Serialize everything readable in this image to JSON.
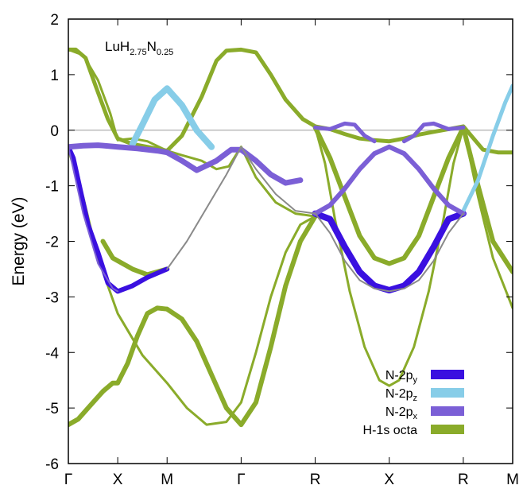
{
  "chart_data": {
    "type": "line",
    "title": "",
    "inset_label": {
      "base": "LuH",
      "sub1": "2.75",
      "mid": "N",
      "sub2": "0.25"
    },
    "ylabel": "Energy (eV)",
    "xlabel": "",
    "ylim": [
      -6,
      2
    ],
    "y_ticks": [
      2,
      1,
      0,
      -1,
      -2,
      -3,
      -4,
      -5,
      -6
    ],
    "x_ticks": [
      "Γ",
      "X",
      "M",
      "Γ",
      "R",
      "X",
      "R",
      "M"
    ],
    "x_tick_positions": [
      0,
      1,
      2,
      3.5,
      5,
      6.5,
      8,
      9
    ],
    "xlim": [
      0,
      9
    ],
    "fermi_level": 0,
    "legend_position": "bottom-right",
    "legend": [
      {
        "base": "N-2p",
        "sub": "y",
        "color": "#3a10e0"
      },
      {
        "base": "N-2p",
        "sub": "z",
        "color": "#87cde8"
      },
      {
        "base": "N-2p",
        "sub": "x",
        "color": "#7b5fd6"
      },
      {
        "base": "H-1s octa",
        "sub": "",
        "color": "#8aab2a"
      }
    ],
    "series": [
      {
        "character": "H-1s octa",
        "color": "#8aab2a",
        "width": 5,
        "x": [
          0,
          0.15,
          0.35,
          0.55,
          0.8,
          1.0,
          1.3,
          1.6,
          2.0,
          2.3,
          2.7,
          3.0,
          3.2,
          3.5,
          3.8,
          4.1,
          4.4,
          4.75,
          5.0,
          5.3,
          5.6,
          5.9,
          6.2,
          6.5,
          6.8,
          7.1,
          7.4,
          7.7,
          8.0,
          8.4,
          8.7,
          9.0
        ],
        "y": [
          1.45,
          1.45,
          1.3,
          0.8,
          0.2,
          -0.15,
          -0.25,
          -0.3,
          -0.37,
          -0.1,
          0.6,
          1.25,
          1.43,
          1.45,
          1.4,
          1.0,
          0.55,
          0.2,
          0.07,
          0.02,
          -0.07,
          -0.15,
          -0.18,
          -0.2,
          -0.15,
          -0.08,
          -0.03,
          0.02,
          0.07,
          -0.35,
          -0.4,
          -0.4
        ]
      },
      {
        "character": "H-1s octa",
        "color": "#8aab2a",
        "width": 3,
        "x": [
          0,
          0.3,
          0.6,
          0.85,
          1.0,
          1.3,
          1.6,
          2.0,
          2.3,
          2.7,
          3.0,
          3.25,
          3.5,
          3.8,
          4.2,
          4.6,
          5.0
        ],
        "y": [
          1.45,
          1.35,
          0.9,
          0.3,
          -0.18,
          -0.15,
          -0.2,
          -0.37,
          -0.45,
          -0.55,
          -0.7,
          -0.65,
          -0.3,
          -0.85,
          -1.3,
          -1.5,
          -1.55
        ]
      },
      {
        "character": "H-1s octa",
        "color": "#8aab2a",
        "width": 3,
        "x": [
          0,
          0.3,
          0.6,
          1.0,
          1.5,
          2.0,
          2.4,
          2.8,
          3.2,
          3.5,
          3.8,
          4.1,
          4.4,
          4.7,
          5.0
        ],
        "y": [
          -0.35,
          -1.2,
          -2.3,
          -3.3,
          -4.05,
          -4.55,
          -5.0,
          -5.3,
          -5.25,
          -4.9,
          -4.0,
          -3.0,
          -2.2,
          -1.7,
          -1.55
        ]
      },
      {
        "character": "H-1s octa",
        "color": "#8aab2a",
        "width": 6,
        "x": [
          0,
          0.2,
          0.4,
          0.7,
          0.9,
          1.0,
          1.2,
          1.4,
          1.6,
          1.8,
          2.0
        ],
        "y": [
          -5.3,
          -5.2,
          -5.0,
          -4.7,
          -4.55,
          -4.55,
          -4.2,
          -3.7,
          -3.3,
          -3.2,
          -3.22
        ]
      },
      {
        "character": "H-1s octa",
        "color": "#8aab2a",
        "width": 6,
        "x": [
          2.0,
          2.3,
          2.6,
          2.9,
          3.2,
          3.5,
          3.8,
          4.1,
          4.4,
          4.7,
          5.0
        ],
        "y": [
          -3.22,
          -3.4,
          -3.8,
          -4.4,
          -5.0,
          -5.3,
          -4.9,
          -3.9,
          -2.8,
          -2.0,
          -1.55
        ]
      },
      {
        "character": "H-1s octa",
        "color": "#8aab2a",
        "width": 6,
        "x": [
          0.7,
          0.9,
          1.0,
          1.3,
          1.6,
          2.0
        ],
        "y": [
          -2.0,
          -2.3,
          -2.35,
          -2.5,
          -2.6,
          -2.5
        ]
      },
      {
        "character": "H-1s octa",
        "color": "#8aab2a",
        "width": 3,
        "x": [
          5.0,
          5.2,
          5.4,
          5.7,
          6.0,
          6.3,
          6.5,
          6.7,
          7.0,
          7.3,
          7.6,
          7.8,
          8.0
        ],
        "y": [
          0.05,
          -0.6,
          -1.6,
          -2.9,
          -3.9,
          -4.5,
          -4.6,
          -4.5,
          -3.9,
          -2.9,
          -1.6,
          -0.6,
          0.05
        ]
      },
      {
        "character": "H-1s octa",
        "color": "#8aab2a",
        "width": 6,
        "x": [
          5.0,
          5.3,
          5.6,
          5.9,
          6.2,
          6.5,
          6.8,
          7.1,
          7.4,
          7.7,
          8.0,
          8.3,
          8.6,
          9.0
        ],
        "y": [
          0.05,
          -0.5,
          -1.2,
          -1.9,
          -2.3,
          -2.4,
          -2.3,
          -1.9,
          -1.2,
          -0.5,
          0.05,
          -1.0,
          -2.0,
          -2.55
        ]
      },
      {
        "character": "H-1s octa",
        "color": "#8aab2a",
        "width": 3,
        "x": [
          8.0,
          8.3,
          8.6,
          9.0
        ],
        "y": [
          0.05,
          -1.2,
          -2.3,
          -3.2
        ]
      },
      {
        "character": "N-2py",
        "color": "#3a10e0",
        "width": 6,
        "x": [
          0,
          0.1,
          0.25,
          0.4,
          0.6,
          0.8,
          1.0,
          1.3,
          1.6,
          2.0
        ],
        "y": [
          -0.3,
          -0.5,
          -1.1,
          -1.7,
          -2.2,
          -2.75,
          -2.9,
          -2.8,
          -2.65,
          -2.5
        ]
      },
      {
        "character": "N-2py",
        "color": "#3a10e0",
        "width": 8,
        "x": [
          5.0,
          5.3,
          5.6,
          5.9,
          6.2,
          6.5,
          6.8,
          7.1,
          7.4,
          7.7,
          8.0
        ],
        "y": [
          -1.5,
          -1.6,
          -2.1,
          -2.55,
          -2.8,
          -2.88,
          -2.8,
          -2.55,
          -2.1,
          -1.6,
          -1.5
        ]
      },
      {
        "character": "N-2pz",
        "color": "#87cde8",
        "width": 8,
        "x": [
          1.3,
          1.5,
          1.75,
          2.0,
          2.3,
          2.6,
          2.9
        ],
        "y": [
          -0.25,
          0.1,
          0.55,
          0.75,
          0.45,
          0.0,
          -0.3
        ]
      },
      {
        "character": "N-2pz",
        "color": "#87cde8",
        "width": 5,
        "x": [
          8.0,
          8.3,
          8.6,
          8.85,
          9.0
        ],
        "y": [
          -1.45,
          -0.9,
          -0.1,
          0.5,
          0.8
        ]
      },
      {
        "character": "N-2px",
        "color": "#7b5fd6",
        "width": 7,
        "x": [
          0,
          0.3,
          0.6,
          1.0,
          1.4,
          1.8,
          2.0,
          2.3,
          2.6,
          3.0,
          3.3,
          3.5,
          3.8,
          4.1,
          4.4,
          4.7
        ],
        "y": [
          -0.3,
          -0.28,
          -0.27,
          -0.3,
          -0.33,
          -0.37,
          -0.4,
          -0.55,
          -0.72,
          -0.55,
          -0.35,
          -0.35,
          -0.55,
          -0.8,
          -0.95,
          -0.9
        ]
      },
      {
        "character": "N-2px",
        "color": "#7b5fd6",
        "width": 6,
        "x": [
          5.0,
          5.3,
          5.6,
          5.9,
          6.2,
          6.5,
          6.8,
          7.1,
          7.4,
          7.7,
          8.0
        ],
        "y": [
          -1.5,
          -1.35,
          -1.05,
          -0.7,
          -0.42,
          -0.3,
          -0.42,
          -0.7,
          -1.05,
          -1.35,
          -1.5
        ]
      },
      {
        "character": "N-2px",
        "color": "#7b5fd6",
        "width": 2,
        "x": [
          0,
          0.3,
          0.6,
          0.9,
          1.0
        ],
        "y": [
          -0.3,
          -1.5,
          -2.4,
          -2.85,
          -2.9
        ]
      },
      {
        "character": "mixed",
        "color": "#8a8a8a",
        "width": 2,
        "x": [
          2.0,
          2.4,
          2.8,
          3.2,
          3.5,
          3.8,
          4.2,
          4.6,
          5.0
        ],
        "y": [
          -2.5,
          -2.0,
          -1.4,
          -0.8,
          -0.3,
          -0.7,
          -1.15,
          -1.45,
          -1.5
        ]
      },
      {
        "character": "mixed",
        "color": "#8a8a8a",
        "width": 2,
        "x": [
          5.0,
          5.3,
          5.6,
          5.9,
          6.2,
          6.5,
          6.8,
          7.1,
          7.4,
          7.7,
          8.0
        ],
        "y": [
          -1.5,
          -1.85,
          -2.35,
          -2.7,
          -2.85,
          -2.9,
          -2.85,
          -2.7,
          -2.35,
          -1.85,
          -1.5
        ]
      },
      {
        "character": "N-2px",
        "color": "#7b5fd6",
        "width": 5,
        "x": [
          5.0,
          5.3,
          5.6,
          5.8,
          6.0,
          6.2
        ],
        "y": [
          0.05,
          0.02,
          0.12,
          0.1,
          -0.1,
          -0.2
        ]
      },
      {
        "character": "N-2px",
        "color": "#7b5fd6",
        "width": 5,
        "x": [
          6.8,
          7.0,
          7.2,
          7.4,
          7.7,
          8.0
        ],
        "y": [
          -0.2,
          -0.1,
          0.1,
          0.12,
          0.02,
          0.05
        ]
      }
    ]
  }
}
